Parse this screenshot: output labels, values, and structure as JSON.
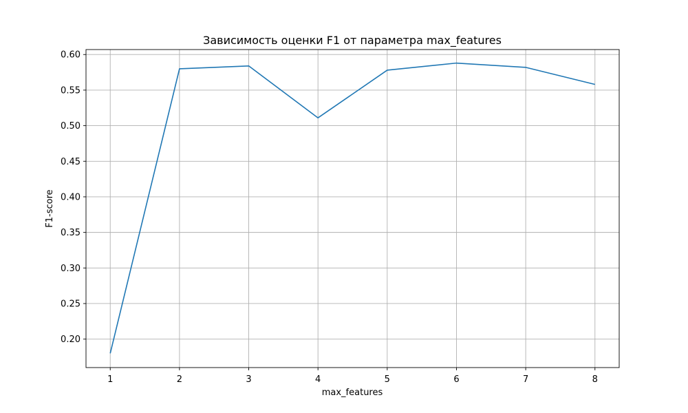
{
  "chart_data": {
    "type": "line",
    "title": "Зависимость оценки F1 от параметра max_features",
    "xlabel": "max_features",
    "ylabel": "F1-score",
    "x": [
      1,
      2,
      3,
      4,
      5,
      6,
      7,
      8
    ],
    "series": [
      {
        "values": [
          0.18,
          0.58,
          0.584,
          0.511,
          0.578,
          0.588,
          0.582,
          0.558
        ],
        "color": "#1f77b4"
      }
    ],
    "xlim": [
      0.65,
      8.35
    ],
    "ylim": [
      0.16,
      0.607
    ],
    "xticks": [
      "1",
      "2",
      "3",
      "4",
      "5",
      "6",
      "7",
      "8"
    ],
    "yticks": [
      "0.20",
      "0.25",
      "0.30",
      "0.35",
      "0.40",
      "0.45",
      "0.50",
      "0.55",
      "0.60"
    ],
    "grid": true,
    "legend": "none"
  }
}
